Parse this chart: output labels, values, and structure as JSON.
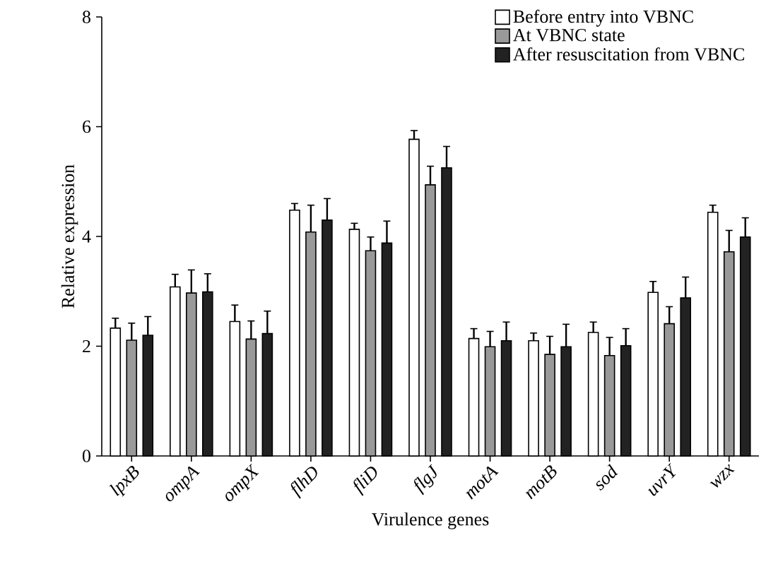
{
  "chart_data": {
    "type": "bar",
    "xlabel": "Virulence genes",
    "ylabel": "Relative expression",
    "categories": [
      "lpxB",
      "ompA",
      "ompX",
      "flhD",
      "fliD",
      "flgJ",
      "motA",
      "motB",
      "sod",
      "uvrY",
      "wzx"
    ],
    "series": [
      {
        "name": "Before entry into VBNC",
        "color": "#ffffff",
        "values": [
          2.33,
          3.08,
          2.45,
          4.48,
          4.13,
          5.77,
          2.14,
          2.1,
          2.25,
          2.98,
          4.44
        ],
        "errors": [
          [
            2.33,
            2.51
          ],
          [
            3.08,
            3.31
          ],
          [
            2.45,
            2.75
          ],
          [
            4.48,
            4.6
          ],
          [
            4.13,
            4.24
          ],
          [
            5.77,
            5.93
          ],
          [
            2.14,
            2.32
          ],
          [
            2.1,
            2.24
          ],
          [
            2.25,
            2.44
          ],
          [
            2.98,
            3.18
          ],
          [
            4.44,
            4.57
          ]
        ]
      },
      {
        "name": "At VBNC state",
        "color": "#999999",
        "values": [
          2.11,
          2.97,
          2.13,
          4.08,
          3.74,
          4.94,
          1.99,
          1.85,
          1.83,
          2.41,
          3.72
        ],
        "errors": [
          [
            2.11,
            2.42
          ],
          [
            2.97,
            3.39
          ],
          [
            2.13,
            2.46
          ],
          [
            4.08,
            4.57
          ],
          [
            3.74,
            3.99
          ],
          [
            4.94,
            5.28
          ],
          [
            1.99,
            2.27
          ],
          [
            1.85,
            2.18
          ],
          [
            1.83,
            2.16
          ],
          [
            2.41,
            2.72
          ],
          [
            3.72,
            4.11
          ]
        ]
      },
      {
        "name": "After resuscitation from VBNC",
        "color": "#222222",
        "values": [
          2.2,
          2.99,
          2.23,
          4.3,
          3.88,
          5.25,
          2.1,
          1.99,
          2.01,
          2.88,
          3.99
        ],
        "errors": [
          [
            2.2,
            2.54
          ],
          [
            2.99,
            3.32
          ],
          [
            2.23,
            2.64
          ],
          [
            4.3,
            4.69
          ],
          [
            3.88,
            4.28
          ],
          [
            5.25,
            5.64
          ],
          [
            2.1,
            2.44
          ],
          [
            1.99,
            2.4
          ],
          [
            2.01,
            2.32
          ],
          [
            2.88,
            3.26
          ],
          [
            3.99,
            4.34
          ]
        ]
      }
    ],
    "ylim": [
      0,
      8
    ],
    "yticks": [
      0,
      2,
      4,
      6,
      8
    ],
    "legend": "top right",
    "grid": false
  }
}
